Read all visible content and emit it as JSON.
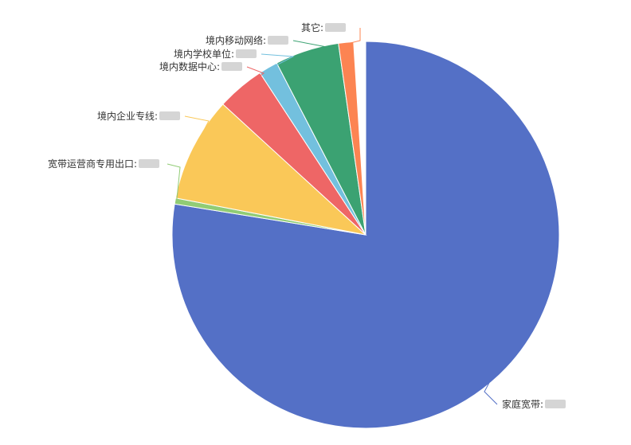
{
  "chart_data": {
    "type": "pie",
    "start_angle": "12 o'clock",
    "direction": "clockwise",
    "slices": [
      {
        "label": "家庭宽带",
        "value_text": "",
        "share": 0.7755,
        "color": "#5470c6"
      },
      {
        "label": "宽带运营商专用出口",
        "value_text": "",
        "share": 0.005,
        "color": "#91cc75"
      },
      {
        "label": "境内企业专线",
        "value_text": "",
        "share": 0.0875,
        "color": "#fac858"
      },
      {
        "label": "境内数据中心",
        "value_text": "",
        "share": 0.04,
        "color": "#ee6666"
      },
      {
        "label": "境内学校单位",
        "value_text": "",
        "share": 0.016,
        "color": "#73c0de"
      },
      {
        "label": "境内移动网络",
        "value_text": "",
        "share": 0.0535,
        "color": "#3ba272"
      },
      {
        "label": "其它",
        "value_text": "",
        "share": 0.0125,
        "color": "#fc8452"
      }
    ]
  }
}
